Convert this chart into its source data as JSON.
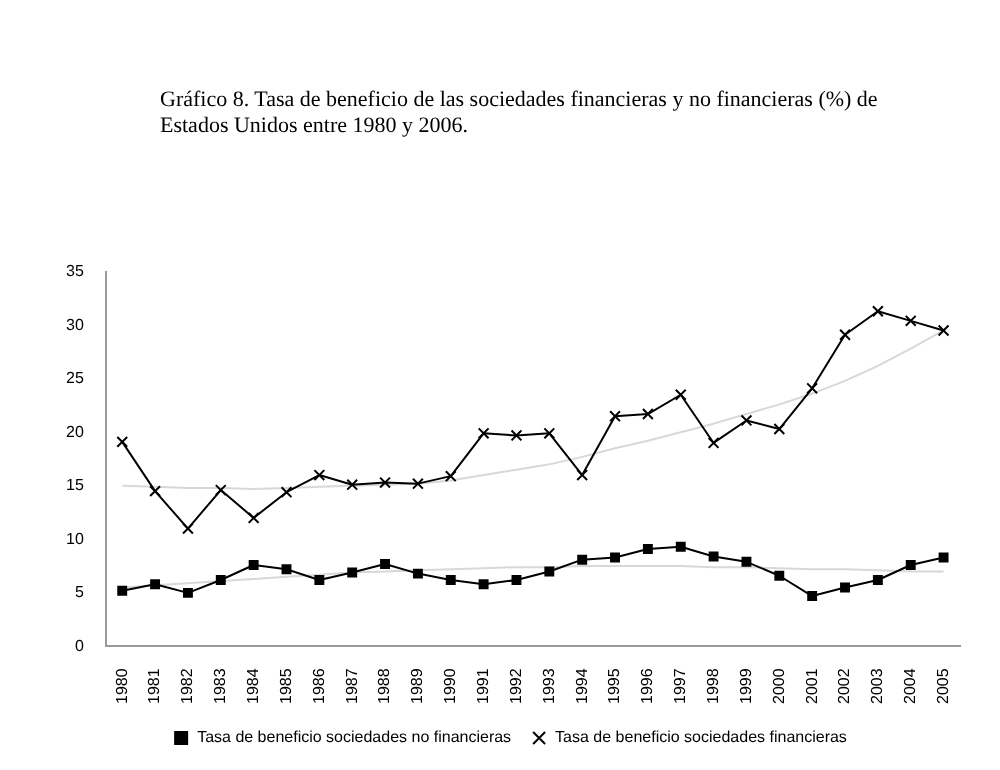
{
  "chart_data": {
    "type": "line",
    "title": "Gráfico 8. Tasa de beneficio de las sociedades financieras y no financieras (%) de Estados Unidos entre 1980 y 2006.",
    "categories": [
      "1980",
      "1981",
      "1982",
      "1983",
      "1984",
      "1985",
      "1986",
      "1987",
      "1988",
      "1989",
      "1990",
      "1991",
      "1992",
      "1993",
      "1994",
      "1995",
      "1996",
      "1997",
      "1998",
      "1999",
      "2000",
      "2001",
      "2002",
      "2003",
      "2004",
      "2005"
    ],
    "series": [
      {
        "name": "Tasa de beneficio sociedades no financieras",
        "color": "#000000",
        "marker": "square",
        "values": [
          5.2,
          5.8,
          5.0,
          6.2,
          7.6,
          7.2,
          6.2,
          6.9,
          7.7,
          6.8,
          6.2,
          5.8,
          6.2,
          7.0,
          8.1,
          8.3,
          9.1,
          9.3,
          8.4,
          7.9,
          6.6,
          4.7,
          5.5,
          6.2,
          7.6,
          8.3
        ]
      },
      {
        "name": "Tasa de beneficio sociedades financieras",
        "color": "#000000",
        "marker": "cross",
        "values": [
          19.1,
          14.5,
          11.0,
          14.6,
          12.0,
          14.4,
          16.0,
          15.1,
          15.3,
          15.2,
          15.9,
          19.9,
          19.7,
          19.9,
          16.0,
          21.5,
          21.7,
          23.5,
          19.0,
          21.1,
          20.3,
          24.1,
          29.1,
          31.3,
          30.4,
          29.5
        ]
      },
      {
        "type": "line",
        "color": "#d8d8d8",
        "marker": "none",
        "values": [
          5.5,
          5.7,
          5.9,
          6.1,
          6.3,
          6.5,
          6.7,
          6.9,
          7.0,
          7.1,
          7.2,
          7.3,
          7.4,
          7.4,
          7.5,
          7.5,
          7.5,
          7.5,
          7.4,
          7.4,
          7.3,
          7.2,
          7.2,
          7.1,
          7.0,
          7.0
        ]
      },
      {
        "type": "line",
        "color": "#d8d8d8",
        "marker": "none",
        "values": [
          15.0,
          14.9,
          14.8,
          14.8,
          14.7,
          14.8,
          14.9,
          15.0,
          15.1,
          15.2,
          15.5,
          16.0,
          16.5,
          17.0,
          17.7,
          18.5,
          19.2,
          20.0,
          20.8,
          21.7,
          22.6,
          23.6,
          24.8,
          26.2,
          27.8,
          29.5
        ]
      }
    ],
    "ylim": [
      0,
      35
    ],
    "yticks": [
      0,
      5,
      10,
      15,
      20,
      25,
      30,
      35
    ],
    "grid": false,
    "legend": "bottom"
  }
}
